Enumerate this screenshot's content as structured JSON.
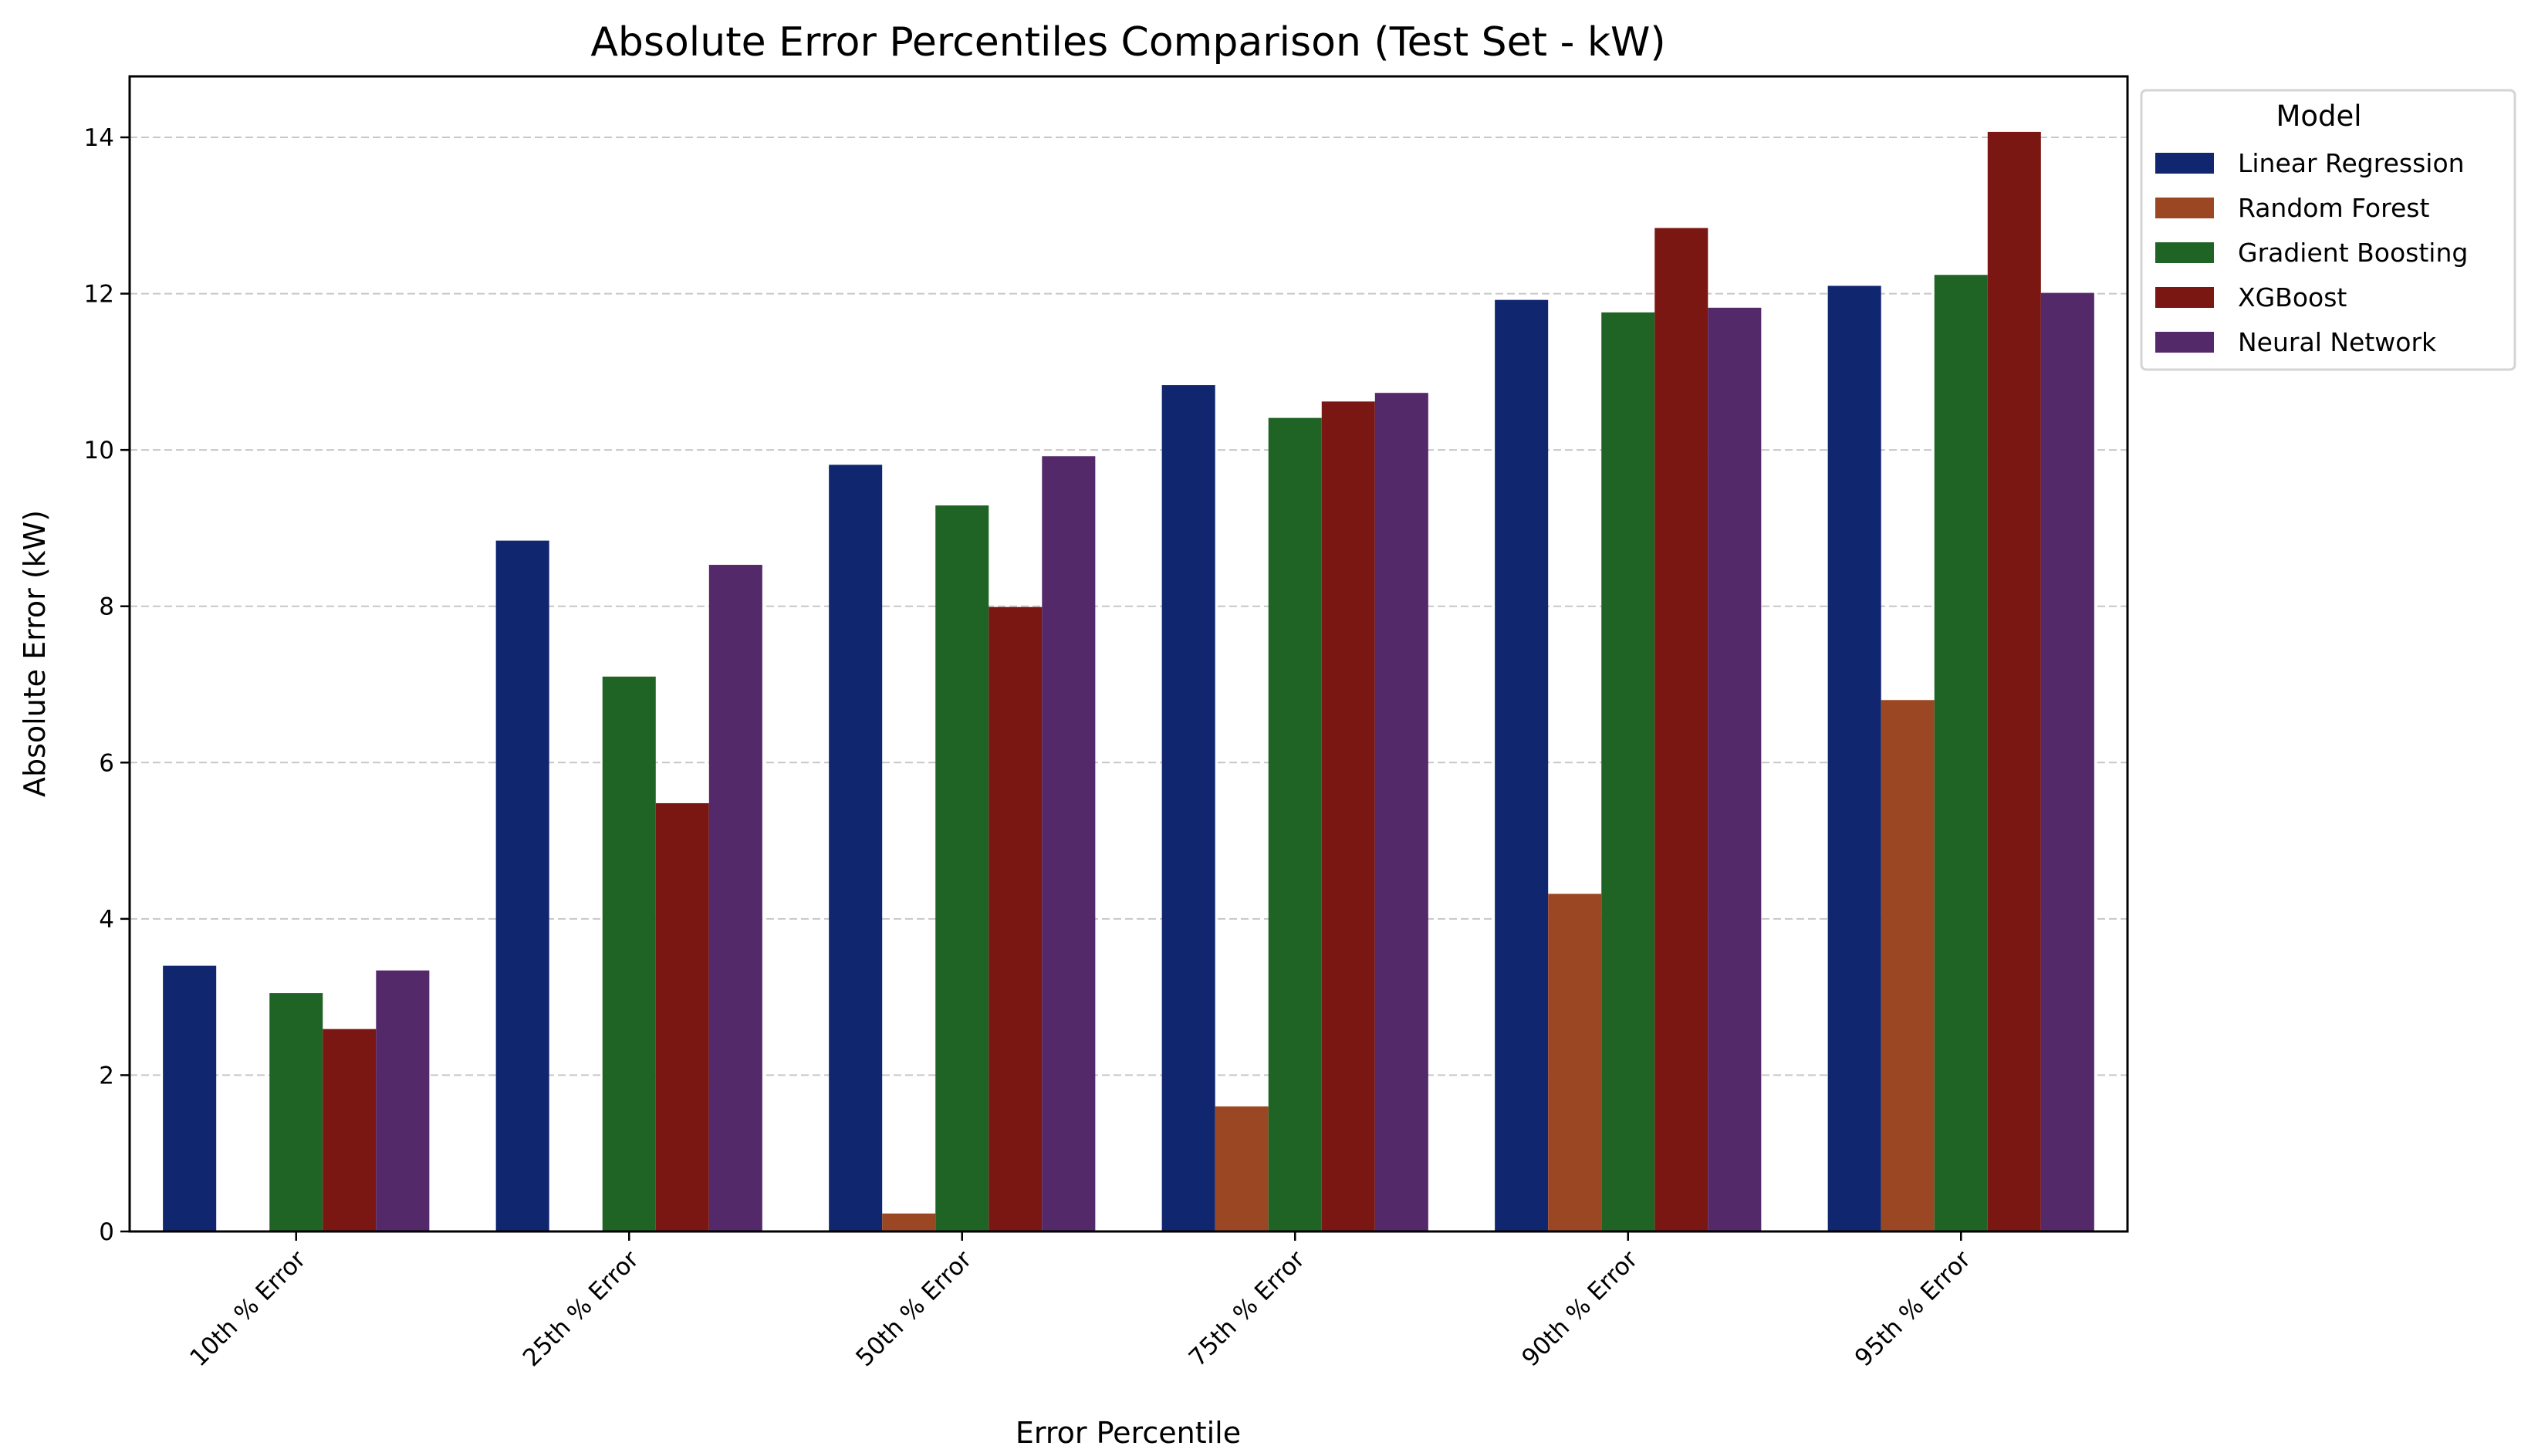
{
  "chart_data": {
    "type": "bar",
    "title": "Absolute Error Percentiles Comparison (Test Set - kW)",
    "xlabel": "Error Percentile",
    "ylabel": "Absolute Error (kW)",
    "ylim": [
      0,
      14.78
    ],
    "yticks": [
      0,
      2,
      4,
      6,
      8,
      10,
      12,
      14
    ],
    "grid": "y-dashed",
    "categories": [
      "10th % Error",
      "25th % Error",
      "50th % Error",
      "75th % Error",
      "90th % Error",
      "95th % Error"
    ],
    "legend": {
      "title": "Model",
      "placement": "outside-top-right"
    },
    "series": [
      {
        "name": "Linear Regression",
        "color": "#10266f",
        "values": [
          3.4,
          8.84,
          9.81,
          10.83,
          11.92,
          12.1
        ]
      },
      {
        "name": "Random Forest",
        "color": "#9b4723",
        "values": [
          0,
          0,
          0.23,
          1.6,
          4.32,
          6.8
        ]
      },
      {
        "name": "Gradient Boosting",
        "color": "#1f6424",
        "values": [
          3.05,
          7.1,
          9.29,
          10.41,
          11.76,
          12.24
        ]
      },
      {
        "name": "XGBoost",
        "color": "#7a1712",
        "values": [
          2.59,
          5.48,
          7.99,
          10.62,
          12.84,
          14.07
        ]
      },
      {
        "name": "Neural Network",
        "color": "#54296a",
        "values": [
          3.34,
          8.53,
          9.92,
          10.73,
          11.82,
          12.01
        ]
      }
    ]
  }
}
